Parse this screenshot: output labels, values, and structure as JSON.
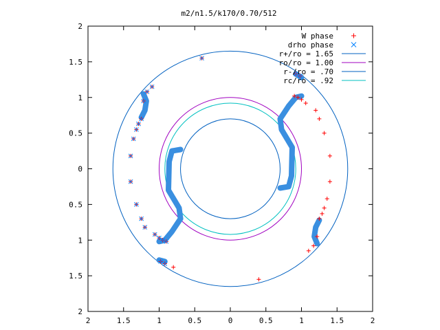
{
  "chart_data": {
    "type": "scatter",
    "title": "m2/n1.5/k170/0.70/512",
    "xlabel": "",
    "ylabel": "",
    "xlim": [
      -2,
      2
    ],
    "ylim": [
      -2,
      2
    ],
    "x_tick_labels": [
      "2",
      "1.5",
      "1",
      "0.5",
      "0",
      "0.5",
      "1",
      "1.5",
      "2"
    ],
    "y_tick_labels": [
      "2",
      "1.5",
      "1",
      "0.5",
      "0",
      "0.5",
      "1",
      "1.5",
      "2"
    ],
    "x_ticks": [
      -2,
      -1.5,
      -1,
      -0.5,
      0,
      0.5,
      1,
      1.5,
      2
    ],
    "y_ticks": [
      2,
      1.5,
      1,
      0.5,
      0,
      -0.5,
      -1,
      -1.5,
      -2
    ],
    "grid": false,
    "legend_position": "top-right",
    "point_series": [
      {
        "name": "W phase",
        "marker": "+",
        "color": "#ff0000",
        "points": [
          [
            -0.4,
            1.55
          ],
          [
            -1.1,
            1.15
          ],
          [
            -1.17,
            1.08
          ],
          [
            -1.22,
            0.95
          ],
          [
            -1.25,
            0.7
          ],
          [
            -1.29,
            0.63
          ],
          [
            -1.32,
            0.55
          ],
          [
            -1.36,
            0.42
          ],
          [
            -1.4,
            0.18
          ],
          [
            -1.4,
            -0.18
          ],
          [
            -1.32,
            -0.5
          ],
          [
            -1.25,
            -0.7
          ],
          [
            -1.2,
            -0.82
          ],
          [
            -1.06,
            -0.92
          ],
          [
            -1.0,
            -0.97
          ],
          [
            -0.95,
            -1.0
          ],
          [
            -0.9,
            -1.02
          ],
          [
            -0.98,
            -1.3
          ],
          [
            -0.92,
            -1.33
          ],
          [
            -0.8,
            -1.38
          ],
          [
            0.4,
            -1.55
          ],
          [
            1.1,
            -1.15
          ],
          [
            1.17,
            -1.08
          ],
          [
            1.22,
            -0.95
          ],
          [
            1.25,
            -0.7
          ],
          [
            1.29,
            -0.63
          ],
          [
            1.32,
            -0.55
          ],
          [
            1.36,
            -0.42
          ],
          [
            1.4,
            -0.18
          ],
          [
            1.4,
            0.18
          ],
          [
            1.32,
            0.5
          ],
          [
            1.25,
            0.7
          ],
          [
            1.2,
            0.82
          ],
          [
            1.06,
            0.92
          ],
          [
            1.0,
            0.97
          ],
          [
            0.95,
            1.0
          ],
          [
            0.9,
            1.02
          ],
          [
            0.98,
            1.3
          ],
          [
            0.92,
            1.33
          ]
        ]
      },
      {
        "name": "drho phase",
        "marker": "x",
        "color": "#0080ff",
        "points": [
          [
            -0.4,
            1.55
          ],
          [
            -1.1,
            1.15
          ],
          [
            -1.17,
            1.08
          ],
          [
            -1.22,
            0.95
          ],
          [
            -1.25,
            0.7
          ],
          [
            -1.29,
            0.63
          ],
          [
            -1.32,
            0.55
          ],
          [
            -1.36,
            0.42
          ],
          [
            -1.4,
            0.18
          ],
          [
            -1.4,
            -0.18
          ],
          [
            -1.32,
            -0.5
          ],
          [
            -1.25,
            -0.7
          ],
          [
            -1.2,
            -0.82
          ],
          [
            -1.06,
            -0.92
          ],
          [
            -1.0,
            -0.97
          ],
          [
            -0.95,
            -1.0
          ],
          [
            -0.9,
            -1.02
          ],
          [
            -0.98,
            -1.3
          ],
          [
            -0.92,
            -1.33
          ],
          [
            0.98,
            1.3
          ],
          [
            0.92,
            1.33
          ]
        ]
      }
    ],
    "drho_arcs": [
      [
        [
          -0.7,
          0.27
        ],
        [
          -0.82,
          0.25
        ],
        [
          -0.86,
          0.1
        ],
        [
          -0.87,
          -0.3
        ],
        [
          -0.72,
          -0.55
        ],
        [
          -0.7,
          -0.7
        ],
        [
          -0.82,
          -0.88
        ],
        [
          -0.92,
          -1.0
        ],
        [
          -1.0,
          -1.02
        ]
      ],
      [
        [
          0.7,
          -0.27
        ],
        [
          0.82,
          -0.25
        ],
        [
          0.86,
          -0.1
        ],
        [
          0.87,
          0.3
        ],
        [
          0.72,
          0.55
        ],
        [
          0.7,
          0.7
        ],
        [
          0.82,
          0.88
        ],
        [
          0.92,
          1.0
        ],
        [
          1.0,
          1.02
        ]
      ],
      [
        [
          -1.22,
          1.05
        ],
        [
          -1.18,
          0.95
        ],
        [
          -1.2,
          0.82
        ],
        [
          -1.25,
          0.72
        ]
      ],
      [
        [
          1.22,
          -1.05
        ],
        [
          1.18,
          -0.95
        ],
        [
          1.2,
          -0.82
        ],
        [
          1.25,
          -0.72
        ]
      ],
      [
        [
          -1.0,
          -1.28
        ],
        [
          -0.92,
          -1.3
        ]
      ],
      [
        [
          0.92,
          1.33
        ],
        [
          1.0,
          1.28
        ]
      ]
    ],
    "circles": [
      {
        "name": "r+/ro = 1.65",
        "radius": 1.65,
        "color": "#0060c0"
      },
      {
        "name": "ro/ro = 1.00",
        "radius": 1.0,
        "color": "#a000c0"
      },
      {
        "name": "r-/ro = .70",
        "radius": 0.7,
        "color": "#0060c0"
      },
      {
        "name": "rc/ro = .92",
        "radius": 0.92,
        "color": "#00c0c0"
      }
    ]
  }
}
